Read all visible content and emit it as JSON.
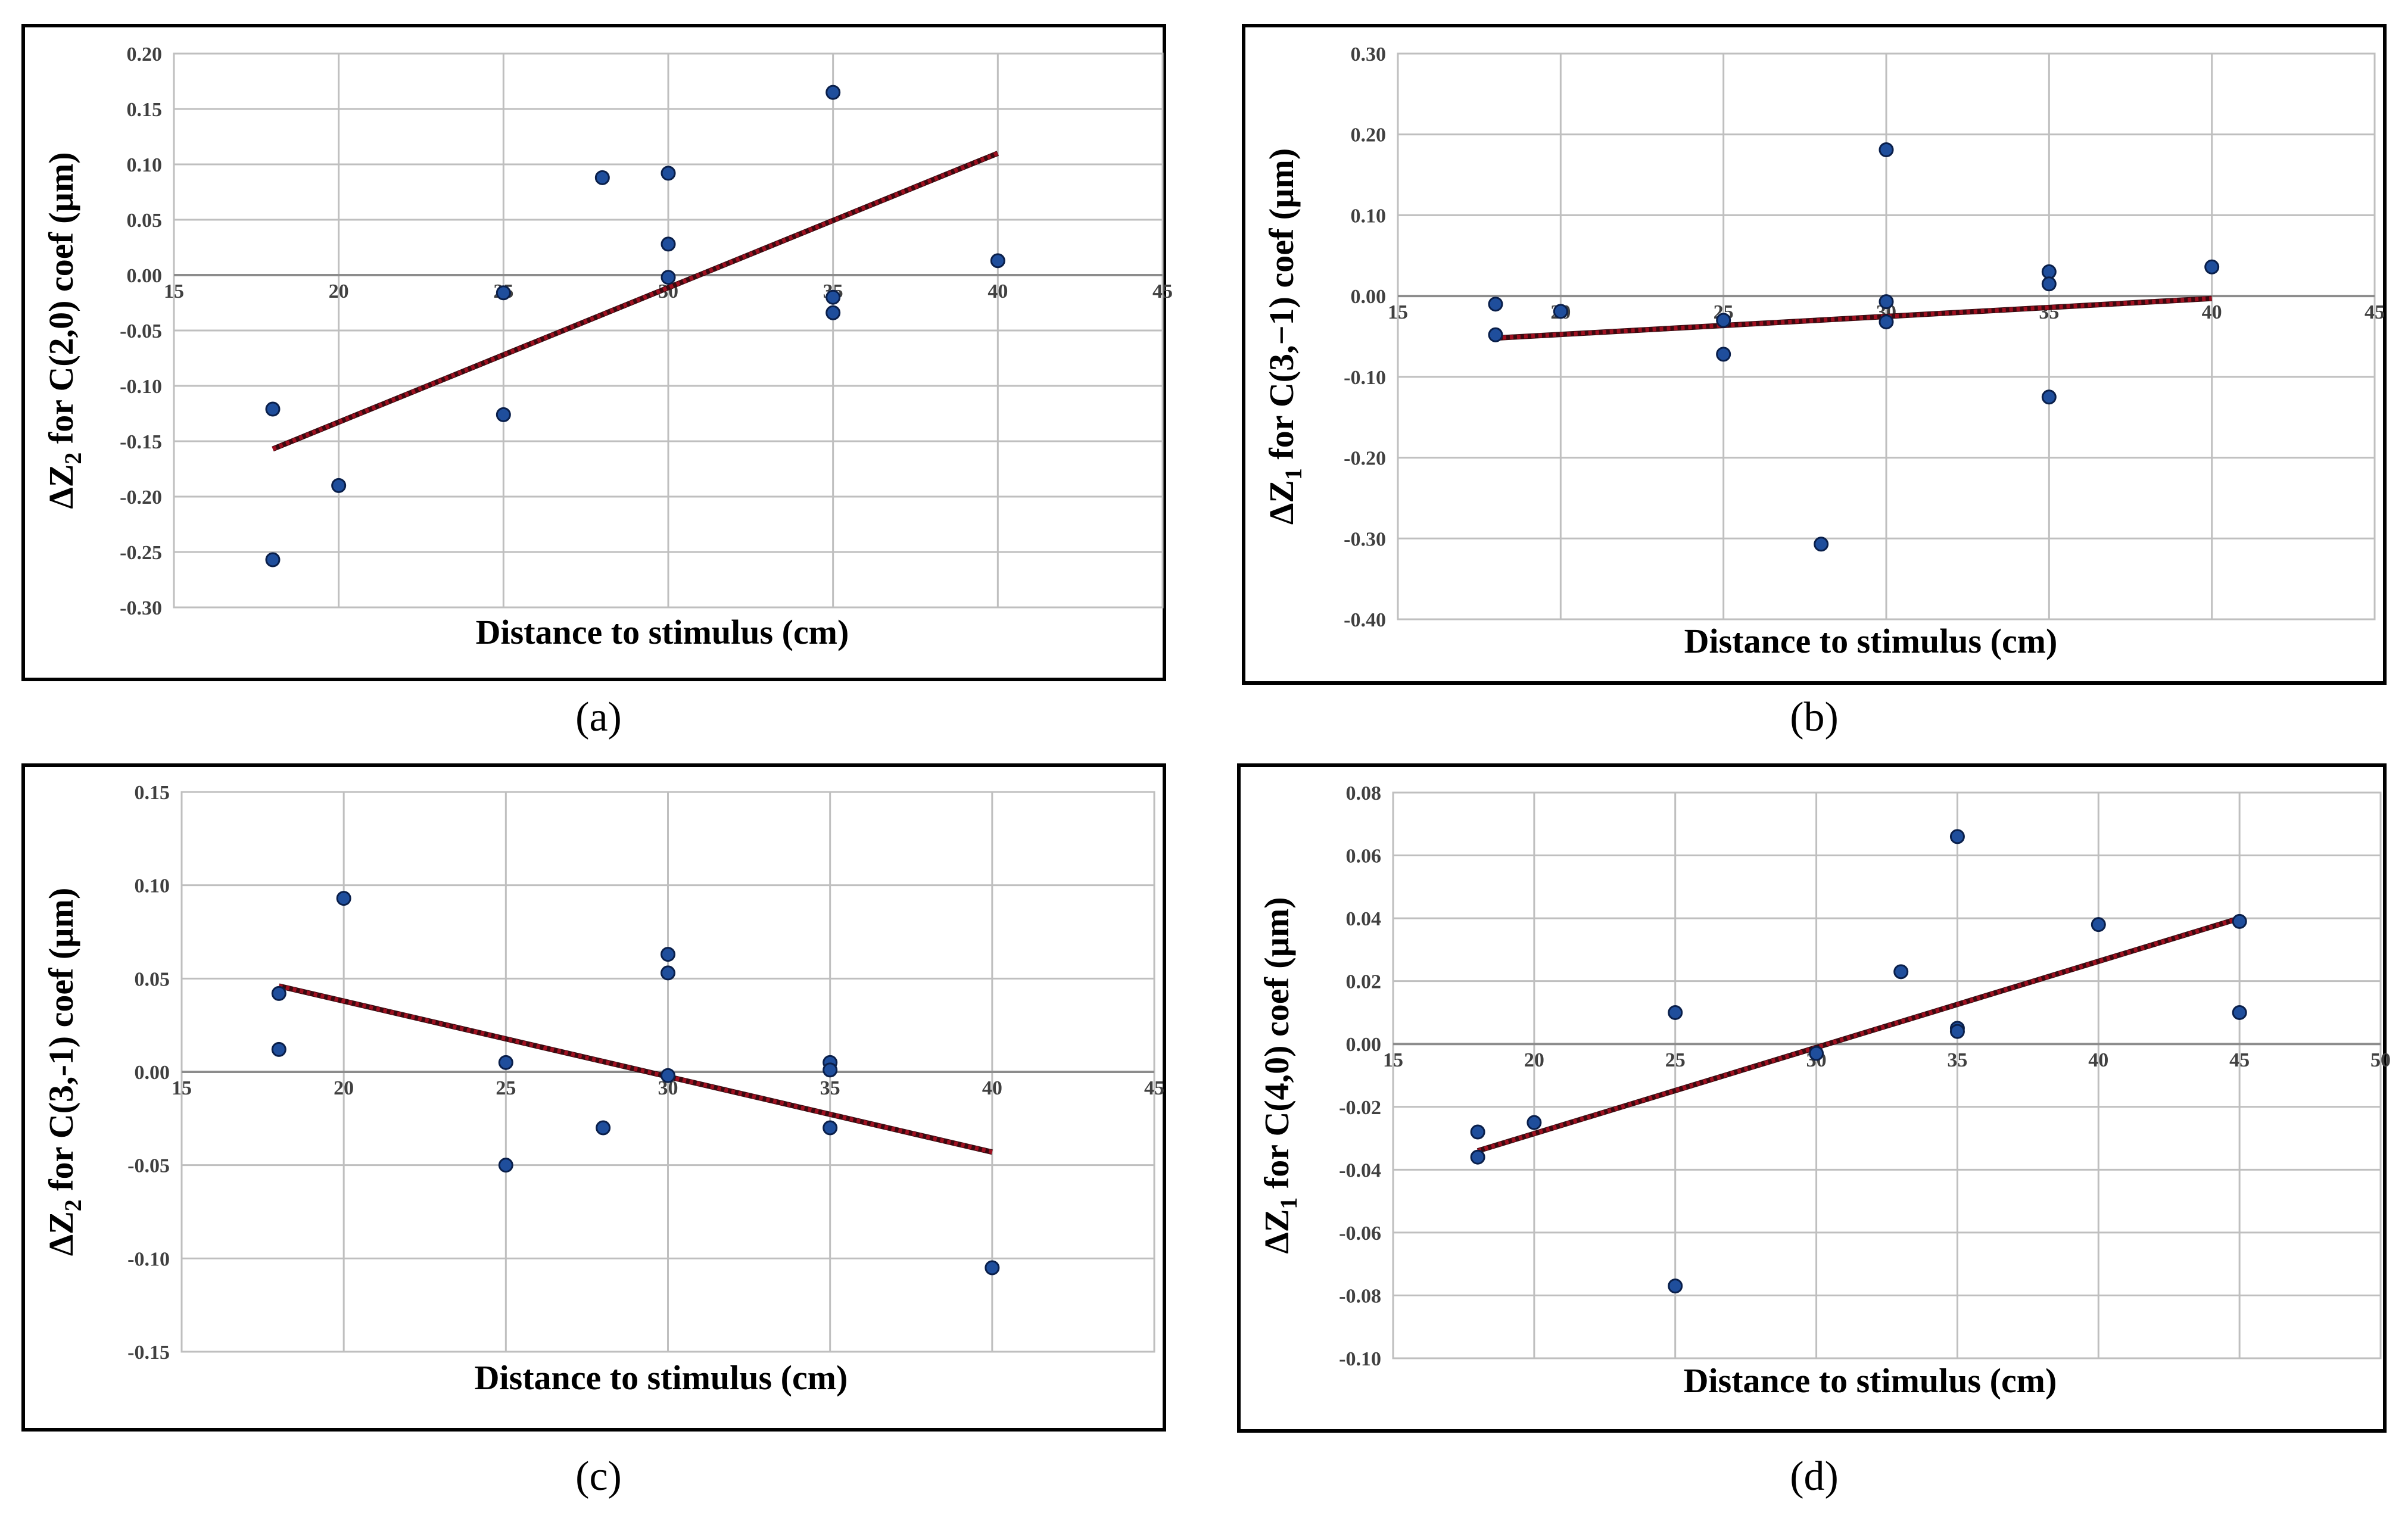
{
  "chart_data": [
    {
      "panel": "(a)",
      "type": "scatter",
      "xlabel": "Distance to stimulus (cm)",
      "ylabel": {
        "pre": "ΔZ",
        "sub": "2",
        "post": " for C(2,0) coef (µm)"
      },
      "xlim": [
        15,
        45
      ],
      "ylim": [
        -0.3,
        0.2
      ],
      "xticks": [
        "15",
        "20",
        "25",
        "30",
        "35",
        "40",
        "45"
      ],
      "yticks": [
        "-0.30",
        "-0.25",
        "-0.20",
        "-0.15",
        "-0.10",
        "-0.05",
        "0.00",
        "0.05",
        "0.10",
        "0.15",
        "0.20"
      ],
      "x_axis_at_zero": true,
      "points": [
        [
          18,
          -0.121
        ],
        [
          18,
          -0.257
        ],
        [
          20,
          -0.19
        ],
        [
          25,
          -0.016
        ],
        [
          25,
          -0.126
        ],
        [
          28,
          0.088
        ],
        [
          30,
          0.092
        ],
        [
          30,
          0.028
        ],
        [
          30,
          -0.002
        ],
        [
          35,
          0.165
        ],
        [
          35,
          -0.02
        ],
        [
          35,
          -0.034
        ],
        [
          40,
          0.013
        ]
      ],
      "trendline": [
        [
          18,
          -0.157
        ],
        [
          40,
          0.11
        ]
      ]
    },
    {
      "panel": "(b)",
      "type": "scatter",
      "xlabel": "Distance to stimulus (cm)",
      "ylabel": {
        "pre": "ΔZ",
        "sub": "1",
        "post": " for C(3,−1) coef (µm)"
      },
      "xlim": [
        15,
        45
      ],
      "ylim": [
        -0.4,
        0.3
      ],
      "xticks": [
        "15",
        "20",
        "25",
        "30",
        "35",
        "40",
        "45"
      ],
      "yticks": [
        "-0.40",
        "-0.30",
        "-0.20",
        "-0.10",
        "0.00",
        "0.10",
        "0.20",
        "0.30"
      ],
      "x_axis_at_zero": true,
      "points": [
        [
          18,
          -0.01
        ],
        [
          18,
          -0.048
        ],
        [
          20,
          -0.019
        ],
        [
          25,
          -0.03
        ],
        [
          25,
          -0.072
        ],
        [
          28,
          -0.307
        ],
        [
          30,
          0.181
        ],
        [
          30,
          -0.007
        ],
        [
          30,
          -0.032
        ],
        [
          35,
          0.03
        ],
        [
          35,
          0.015
        ],
        [
          35,
          -0.125
        ],
        [
          40,
          0.036
        ]
      ],
      "trendline": [
        [
          18,
          -0.052
        ],
        [
          40,
          -0.003
        ]
      ]
    },
    {
      "panel": "(c)",
      "type": "scatter",
      "xlabel": "Distance to stimulus (cm)",
      "ylabel": {
        "pre": "ΔZ",
        "sub": "2",
        "post": " for C(3,-1) coef (µm)"
      },
      "xlim": [
        15,
        45
      ],
      "ylim": [
        -0.15,
        0.15
      ],
      "xticks": [
        "15",
        "20",
        "25",
        "30",
        "35",
        "40",
        "45"
      ],
      "yticks": [
        "-0.15",
        "-0.10",
        "-0.05",
        "0.00",
        "0.05",
        "0.10",
        "0.15"
      ],
      "x_axis_at_zero": true,
      "points": [
        [
          18,
          0.042
        ],
        [
          18,
          0.012
        ],
        [
          20,
          0.093
        ],
        [
          25,
          0.005
        ],
        [
          25,
          -0.05
        ],
        [
          28,
          -0.03
        ],
        [
          30,
          0.063
        ],
        [
          30,
          0.053
        ],
        [
          30,
          -0.002
        ],
        [
          35,
          0.005
        ],
        [
          35,
          0.001
        ],
        [
          35,
          -0.03
        ],
        [
          40,
          -0.105
        ]
      ],
      "trendline": [
        [
          18,
          0.046
        ],
        [
          40,
          -0.043
        ]
      ]
    },
    {
      "panel": "(d)",
      "type": "scatter",
      "xlabel": "Distance to stimulus (cm)",
      "ylabel": {
        "pre": "ΔZ",
        "sub": "1",
        "post": " for C(4,0) coef (µm)"
      },
      "xlim": [
        15,
        50
      ],
      "ylim": [
        -0.1,
        0.08
      ],
      "xticks": [
        "15",
        "20",
        "25",
        "30",
        "35",
        "40",
        "45",
        "50"
      ],
      "yticks": [
        "-0.10",
        "-0.08",
        "-0.06",
        "-0.04",
        "-0.02",
        "0.00",
        "0.02",
        "0.04",
        "0.06",
        "0.08"
      ],
      "x_axis_at_zero": true,
      "points": [
        [
          18,
          -0.028
        ],
        [
          18,
          -0.036
        ],
        [
          20,
          -0.025
        ],
        [
          25,
          0.01
        ],
        [
          25,
          -0.077
        ],
        [
          30,
          -0.003
        ],
        [
          33,
          0.023
        ],
        [
          35,
          0.066
        ],
        [
          35,
          0.005
        ],
        [
          35,
          0.004
        ],
        [
          40,
          0.038
        ],
        [
          45,
          0.039
        ],
        [
          45,
          0.01
        ]
      ],
      "trendline": [
        [
          18,
          -0.034
        ],
        [
          45,
          0.04
        ]
      ]
    }
  ],
  "captions": {
    "a": "(a)",
    "b": "(b)",
    "c": "(c)",
    "d": "(d)"
  },
  "colors": {
    "point": "#1f4e9c",
    "point_edge": "#0a1f4a",
    "trend": "#a01020",
    "grid": "#bfbfbf",
    "axis": "#8c8c8c"
  }
}
